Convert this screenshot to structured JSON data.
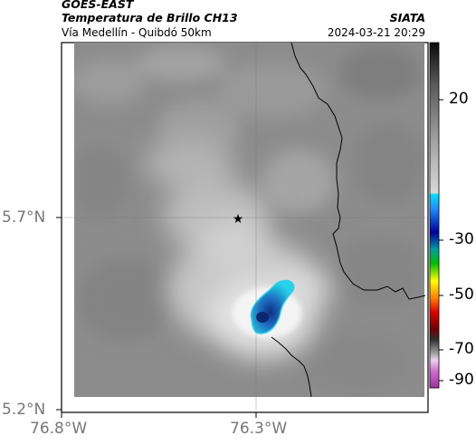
{
  "header": {
    "satellite": "GOES-EAST",
    "product": "Temperatura de Brillo CH13",
    "region": "Vía Medellín - Quibdó 50km",
    "agency": "SIATA",
    "datetime": "2024-03-21 20:29"
  },
  "axes": {
    "lat_labels": [
      "5.7°N",
      "5.2°N"
    ],
    "lon_labels": [
      "76.8°W",
      "76.3°W"
    ]
  },
  "colorbar": {
    "tick_labels": [
      "20",
      "-30",
      "-50",
      "-70",
      "-90"
    ]
  },
  "marker": {
    "symbol": "★"
  },
  "colors": {
    "cloud_core": "#1a3f9a",
    "cloud_edge": "#19c6e0",
    "background_gray": "#8a8a8a",
    "border_line": "#000000"
  }
}
